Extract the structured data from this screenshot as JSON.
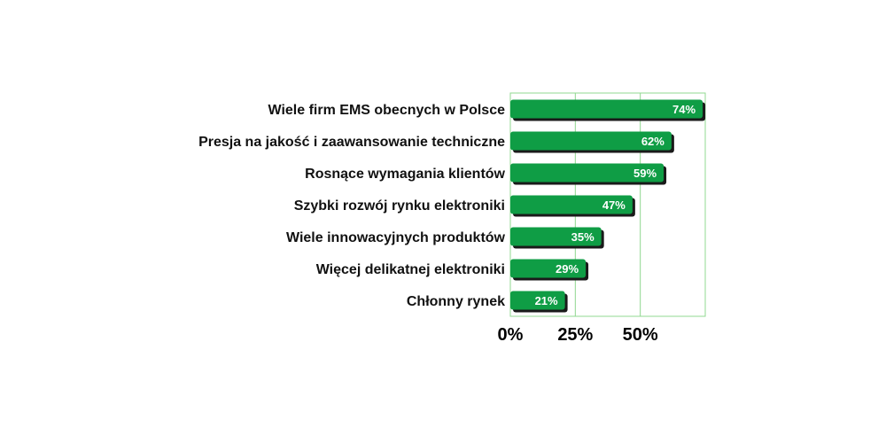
{
  "chart_data": {
    "type": "bar",
    "orientation": "horizontal",
    "categories": [
      "Wiele firm EMS obecnych w Polsce",
      "Presja na jakość i zaawansowanie techniczne",
      "Rosnące wymagania klientów",
      "Szybki rozwój rynku elektroniki",
      "Wiele innowacyjnych produktów",
      "Więcej delikatnej elektroniki",
      "Chłonny rynek"
    ],
    "values": [
      74,
      62,
      59,
      47,
      35,
      29,
      21
    ],
    "data_labels": [
      "74%",
      "62%",
      "59%",
      "47%",
      "35%",
      "29%",
      "21%"
    ],
    "xticks": [
      0,
      25,
      50
    ],
    "xtick_labels": [
      "0%",
      "25%",
      "50%"
    ],
    "xlim": [
      0,
      75
    ],
    "grid": true,
    "colors": {
      "bar": "#0f9d45",
      "bar_shadow": "#1a1a1a",
      "grid": "#90d890",
      "frame": "#90d890"
    }
  }
}
